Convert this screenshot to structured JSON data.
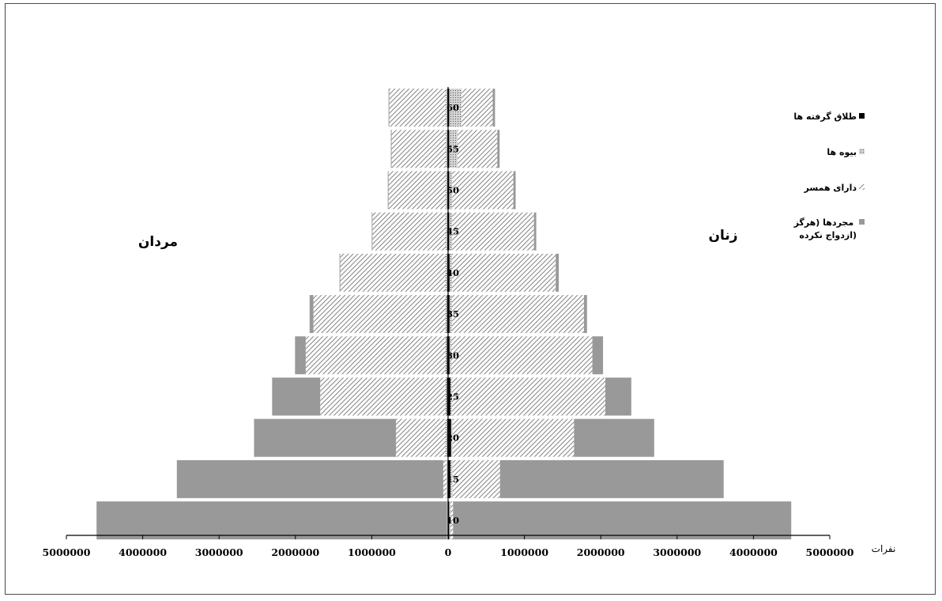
{
  "chart_data": {
    "type": "bar",
    "subtype": "population-pyramid",
    "categories": [
      "10",
      "15",
      "20",
      "25",
      "30",
      "35",
      "40",
      "45",
      "50",
      "55",
      "60"
    ],
    "left_label": "مردان",
    "right_label": "زنان",
    "unit_label": "نفرات",
    "x_ticks": [
      "5000000",
      "4000000",
      "3000000",
      "2000000",
      "1000000",
      "0",
      "1000000",
      "2000000",
      "3000000",
      "4000000",
      "5000000"
    ],
    "xlim": [
      -5000000,
      5000000
    ],
    "stack_order": [
      "divorced",
      "widowed",
      "married",
      "single"
    ],
    "series": [
      {
        "key": "divorced",
        "name": "طلاق گرفته ها",
        "men": [
          5000,
          8000,
          12000,
          15000,
          15000,
          14000,
          12000,
          10000,
          10000,
          10000,
          10000
        ],
        "women": [
          15000,
          30000,
          40000,
          30000,
          20000,
          20000,
          20000,
          15000,
          15000,
          15000,
          15000
        ]
      },
      {
        "key": "widowed",
        "name": "بیوه ها",
        "men": [
          10000,
          15000,
          20000,
          20000,
          20000,
          20000,
          20000,
          20000,
          20000,
          20000,
          20000
        ],
        "women": [
          20000,
          30000,
          20000,
          20000,
          20000,
          30000,
          30000,
          40000,
          40000,
          110000,
          160000
        ]
      },
      {
        "key": "married",
        "name": "دارای همسر",
        "men": [
          0,
          40000,
          650000,
          1640000,
          1830000,
          1730000,
          1380000,
          960000,
          750000,
          710000,
          740000
        ],
        "women": [
          30000,
          620000,
          1590000,
          2010000,
          1850000,
          1730000,
          1360000,
          1070000,
          800000,
          520000,
          410000
        ]
      },
      {
        "key": "single",
        "name": "مجردها (هرگز ازدواج نکرده)",
        "men": [
          4590000,
          3490000,
          1860000,
          630000,
          140000,
          50000,
          10000,
          10000,
          10000,
          10000,
          10000
        ],
        "women": [
          4430000,
          2930000,
          1050000,
          340000,
          140000,
          40000,
          40000,
          30000,
          30000,
          30000,
          30000
        ]
      }
    ],
    "legend_position": "right",
    "colors": {
      "single": "#999999",
      "married_stripe": "#8a8a8a",
      "widowed": "#b8b8b8",
      "divorced": "#000000"
    }
  }
}
